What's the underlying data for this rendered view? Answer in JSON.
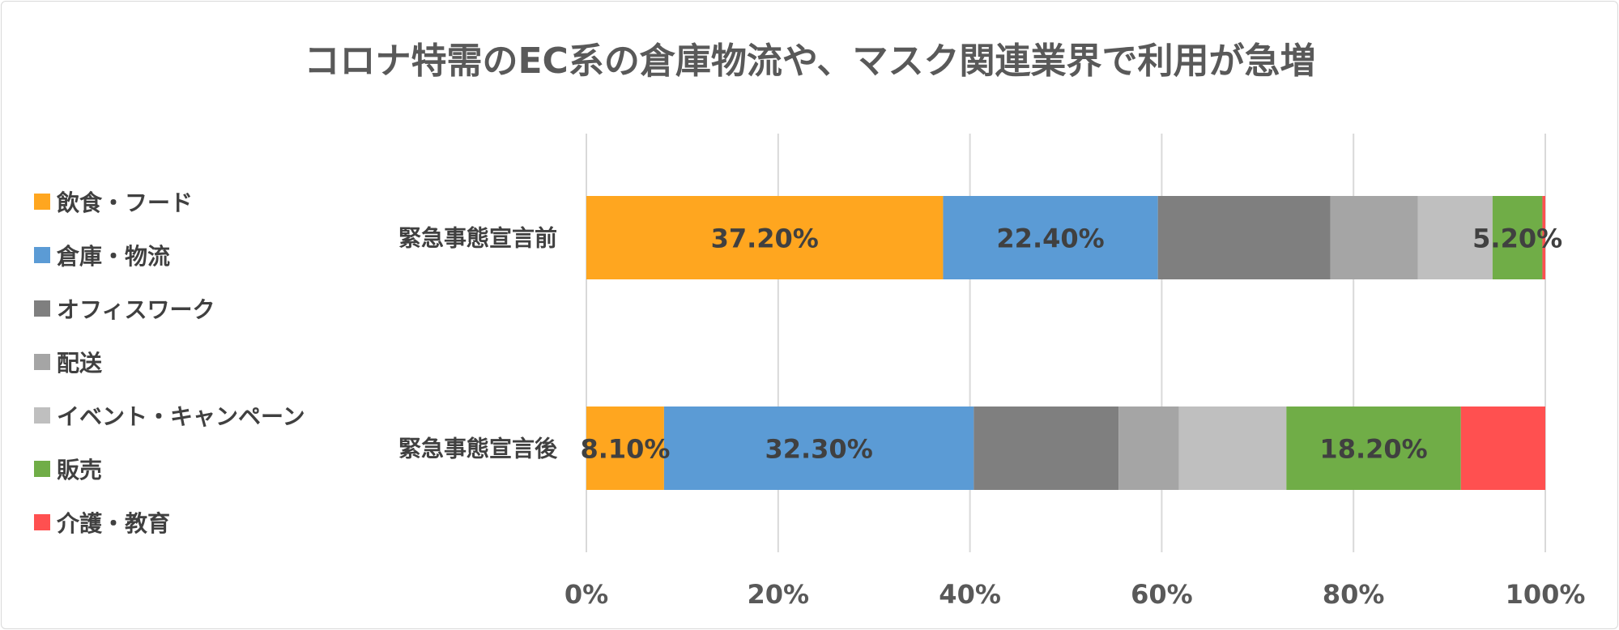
{
  "chart_data": {
    "type": "bar",
    "orientation": "horizontal",
    "stacked": "percent",
    "title": "コロナ特需のEC系の倉庫物流や、マスク関連業界で利用が急増",
    "categories": [
      "緊急事態宣言前",
      "緊急事態宣言後"
    ],
    "xlim": [
      0,
      100
    ],
    "x_ticks": [
      "0%",
      "20%",
      "40%",
      "60%",
      "80%",
      "100%"
    ],
    "grid": "vertical",
    "legend_position": "left",
    "series": [
      {
        "name": "飲食・フード",
        "color": "#FFA61F",
        "values": [
          37.2,
          8.1
        ],
        "labels": [
          "37.20%",
          "8.10%"
        ]
      },
      {
        "name": "倉庫・物流",
        "color": "#5B9BD5",
        "values": [
          22.4,
          32.3
        ],
        "labels": [
          "22.40%",
          "32.30%"
        ]
      },
      {
        "name": "オフィスワーク",
        "color": "#7F7F7F",
        "values": [
          18.0,
          15.1
        ],
        "labels": [
          "",
          ""
        ]
      },
      {
        "name": "配送",
        "color": "#A5A5A5",
        "values": [
          9.1,
          6.3
        ],
        "labels": [
          "",
          ""
        ]
      },
      {
        "name": "イベント・キャンペーン",
        "color": "#BFBFBF",
        "values": [
          7.8,
          11.2
        ],
        "labels": [
          "",
          ""
        ]
      },
      {
        "name": "販売",
        "color": "#70AD47",
        "values": [
          5.2,
          18.2
        ],
        "labels": [
          "5.20%",
          "18.20%"
        ]
      },
      {
        "name": "介護・教育",
        "color": "#FF5050",
        "values": [
          0.3,
          8.8
        ],
        "labels": [
          "",
          ""
        ]
      }
    ]
  }
}
